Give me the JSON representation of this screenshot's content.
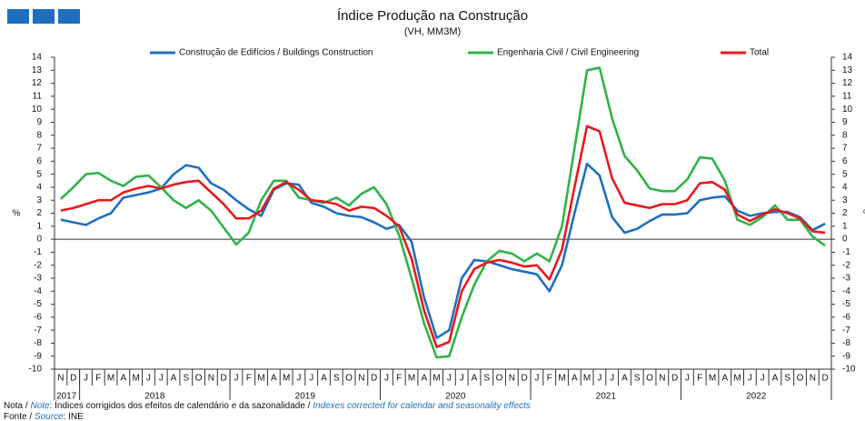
{
  "chart_data": {
    "type": "line",
    "title": "Índice Produção na Construção",
    "subtitle": "(VH, MM3M)",
    "ylabel": "%",
    "y2label": "%",
    "categories": [
      "N",
      "D",
      "J",
      "F",
      "M",
      "A",
      "M",
      "J",
      "J",
      "A",
      "S",
      "O",
      "N",
      "D",
      "J",
      "F",
      "M",
      "A",
      "M",
      "J",
      "J",
      "A",
      "S",
      "O",
      "N",
      "D",
      "J",
      "F",
      "M",
      "A",
      "M",
      "J",
      "J",
      "A",
      "S",
      "O",
      "N",
      "D",
      "J",
      "F",
      "M",
      "A",
      "M",
      "J",
      "J",
      "A",
      "S",
      "O",
      "N",
      "D",
      "J",
      "F",
      "M",
      "A",
      "M",
      "J",
      "J",
      "A",
      "S",
      "O",
      "N",
      "D"
    ],
    "years": [
      "2017",
      "2018",
      "2019",
      "2020",
      "2021",
      "2022"
    ],
    "series": [
      {
        "name": "Construção de Edifícios / Buildings Construction",
        "color": "#1f6fc0",
        "values": [
          1.5,
          1.3,
          1.1,
          1.6,
          2.0,
          3.2,
          3.4,
          3.6,
          3.9,
          5.0,
          5.7,
          5.5,
          4.3,
          3.8,
          3.0,
          2.3,
          1.8,
          3.8,
          4.3,
          4.2,
          2.8,
          2.5,
          2.0,
          1.8,
          1.7,
          1.3,
          0.8,
          1.1,
          -0.2,
          -4.5,
          -7.6,
          -7.0,
          -3.0,
          -1.6,
          -1.7,
          -2.0,
          -2.3,
          -2.5,
          -2.7,
          -4.0,
          -2.0,
          2.0,
          5.8,
          4.9,
          1.7,
          0.5,
          0.8,
          1.4,
          1.9,
          1.9,
          2.0,
          3.0,
          3.2,
          3.3,
          2.2,
          1.8,
          2.0,
          2.1,
          2.1,
          1.7,
          0.7,
          1.2
        ]
      },
      {
        "name": "Engenharia Civil / Civil Engineering",
        "color": "#2fb34a",
        "values": [
          3.1,
          4.0,
          5.0,
          5.1,
          4.5,
          4.1,
          4.8,
          4.9,
          4.0,
          3.0,
          2.4,
          3.0,
          2.2,
          0.9,
          -0.4,
          0.5,
          3.0,
          4.5,
          4.5,
          3.2,
          3.0,
          2.8,
          3.2,
          2.6,
          3.5,
          4.0,
          2.7,
          0.3,
          -3.0,
          -6.5,
          -9.1,
          -9.0,
          -6.0,
          -3.5,
          -1.7,
          -0.9,
          -1.1,
          -1.7,
          -1.1,
          -1.7,
          1.0,
          7.0,
          13.0,
          13.2,
          9.3,
          6.4,
          5.3,
          3.9,
          3.7,
          3.7,
          4.6,
          6.3,
          6.2,
          4.5,
          1.5,
          1.1,
          1.7,
          2.6,
          1.5,
          1.5,
          0.2,
          -0.5
        ]
      },
      {
        "name": "Total",
        "color": "#e8191c",
        "values": [
          2.2,
          2.4,
          2.7,
          3.0,
          3.0,
          3.6,
          3.9,
          4.1,
          3.9,
          4.2,
          4.4,
          4.5,
          3.6,
          2.7,
          1.6,
          1.6,
          2.2,
          3.9,
          4.4,
          3.8,
          3.0,
          2.9,
          2.7,
          2.2,
          2.5,
          2.4,
          1.8,
          1.0,
          -1.5,
          -5.5,
          -8.3,
          -7.9,
          -4.0,
          -2.3,
          -1.8,
          -1.6,
          -1.8,
          -2.1,
          -2.0,
          -3.1,
          -0.8,
          4.0,
          8.7,
          8.3,
          4.7,
          2.8,
          2.6,
          2.4,
          2.7,
          2.7,
          3.0,
          4.3,
          4.4,
          3.8,
          1.9,
          1.4,
          1.9,
          2.3,
          2.0,
          1.6,
          0.6,
          0.5
        ]
      }
    ],
    "ylim": [
      -10,
      14
    ],
    "yticks": [
      -10,
      -9,
      -8,
      -7,
      -6,
      -5,
      -4,
      -3,
      -2,
      -1,
      0,
      1,
      2,
      3,
      4,
      5,
      6,
      7,
      8,
      9,
      10,
      11,
      12,
      13,
      14
    ],
    "y2lim": [
      -10,
      14
    ],
    "y2ticks": [
      -10,
      -9,
      -8,
      -7,
      -6,
      -5,
      -4,
      -3,
      -2,
      -1,
      0,
      1,
      2,
      3,
      4,
      5,
      6,
      7,
      8,
      9,
      10,
      11,
      12,
      13,
      14
    ],
    "grid": false,
    "legend": "top",
    "note": [
      "Nota / ",
      "Note",
      ": Índices corrigidos dos efeitos de calendário e da sazonalidade / ",
      "Indexes corrected for calendar and seasonality effects"
    ],
    "source": [
      "Fonte / ",
      "Source",
      ": INE"
    ]
  }
}
